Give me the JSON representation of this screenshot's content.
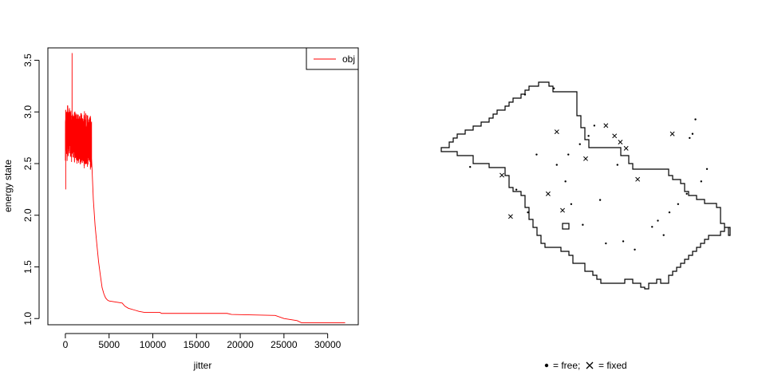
{
  "chart_data": [
    {
      "type": "line",
      "xlabel": "jitter",
      "ylabel": "energy state",
      "xlim": [
        -2000,
        33500
      ],
      "ylim": [
        0.94,
        3.62
      ],
      "x_ticks": [
        0,
        5000,
        10000,
        15000,
        20000,
        25000,
        30000
      ],
      "x_tick_labels": [
        "0",
        "5000",
        "10000",
        "15000",
        "20000",
        "25000",
        "30000"
      ],
      "y_ticks": [
        1.0,
        1.5,
        2.0,
        2.5,
        3.0,
        3.5
      ],
      "y_tick_labels": [
        "1.0",
        "1.5",
        "2.0",
        "2.5",
        "3.0",
        "3.5"
      ],
      "legend": {
        "position": "top-right",
        "entries": [
          "obj"
        ]
      },
      "series": [
        {
          "name": "obj",
          "color": "#ff0000",
          "noisy_segment": {
            "description_free": true,
            "x_range": [
              0,
              3000
            ],
            "band_mean_start": 2.8,
            "band_mean_end": 2.7,
            "band_spread": 0.28,
            "max": 3.57,
            "min": 2.25
          },
          "x": [
            3000,
            3200,
            3400,
            3600,
            3800,
            4000,
            4200,
            4400,
            4600,
            4800,
            5000,
            6500,
            6800,
            7200,
            8000,
            8400,
            9000,
            10800,
            11000,
            18500,
            19000,
            24000,
            25000,
            26500,
            27000,
            32000
          ],
          "y": [
            2.55,
            2.15,
            1.9,
            1.72,
            1.55,
            1.42,
            1.3,
            1.24,
            1.2,
            1.18,
            1.17,
            1.15,
            1.12,
            1.1,
            1.08,
            1.07,
            1.06,
            1.06,
            1.05,
            1.05,
            1.04,
            1.03,
            1.0,
            0.98,
            0.96,
            0.96
          ]
        }
      ]
    },
    {
      "type": "scatter",
      "legend": {
        "position": "bottom",
        "entries": [
          "= free;",
          "= fixed"
        ]
      },
      "free_points": [
        [
          0.1,
          0.59
        ],
        [
          0.29,
          0.94
        ],
        [
          0.39,
          0.97
        ],
        [
          0.33,
          0.65
        ],
        [
          0.26,
          0.48
        ],
        [
          0.4,
          0.6
        ],
        [
          0.44,
          0.65
        ],
        [
          0.48,
          0.7
        ],
        [
          0.51,
          0.74
        ],
        [
          0.53,
          0.79
        ],
        [
          0.61,
          0.6
        ],
        [
          0.43,
          0.52
        ],
        [
          0.45,
          0.41
        ],
        [
          0.3,
          0.37
        ],
        [
          0.55,
          0.43
        ],
        [
          0.49,
          0.31
        ],
        [
          0.57,
          0.22
        ],
        [
          0.63,
          0.23
        ],
        [
          0.67,
          0.19
        ],
        [
          0.73,
          0.3
        ],
        [
          0.77,
          0.26
        ],
        [
          0.79,
          0.37
        ],
        [
          0.82,
          0.41
        ],
        [
          0.85,
          0.46
        ],
        [
          0.9,
          0.52
        ],
        [
          0.92,
          0.58
        ],
        [
          0.75,
          0.33
        ],
        [
          0.86,
          0.73
        ],
        [
          0.87,
          0.75
        ],
        [
          0.88,
          0.82
        ]
      ],
      "fixed_points": [
        [
          0.21,
          0.55
        ],
        [
          0.37,
          0.46
        ],
        [
          0.24,
          0.35
        ],
        [
          0.42,
          0.38
        ],
        [
          0.68,
          0.53
        ],
        [
          0.4,
          0.76
        ],
        [
          0.64,
          0.68
        ],
        [
          0.62,
          0.71
        ],
        [
          0.6,
          0.74
        ],
        [
          0.57,
          0.79
        ],
        [
          0.8,
          0.75
        ],
        [
          0.5,
          0.63
        ]
      ]
    }
  ]
}
